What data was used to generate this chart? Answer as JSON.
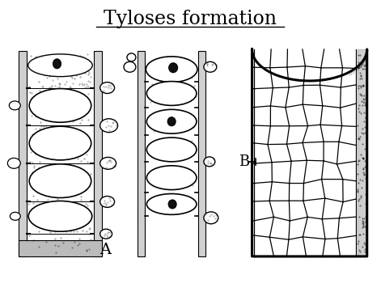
{
  "title": "Tyloses formation",
  "title_fontsize": 17,
  "title_fontfamily": "serif",
  "background_color": "#ffffff",
  "label_A": "A",
  "label_B": "B",
  "label_fontsize": 13,
  "fig_width": 4.71,
  "fig_height": 3.61,
  "dpi": 100
}
